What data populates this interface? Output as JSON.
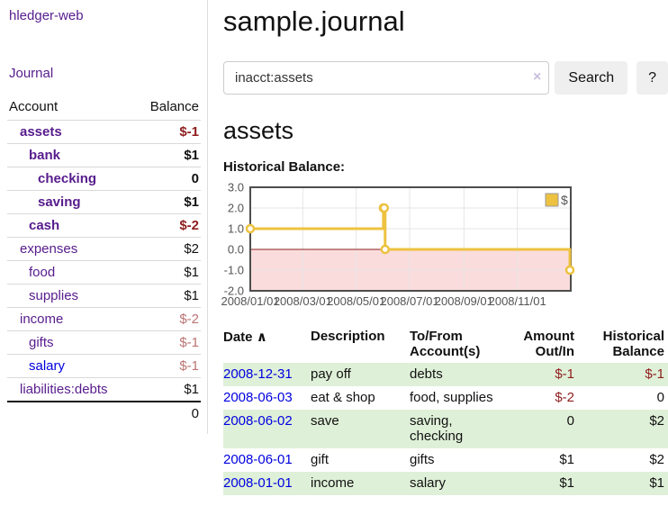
{
  "sidebar": {
    "brand": "hledger-web",
    "journal_link": "Journal",
    "accounts": {
      "headers": {
        "account": "Account",
        "balance": "Balance"
      },
      "rows": [
        {
          "name": "assets",
          "indent": 1,
          "bold": true,
          "balance": "$-1",
          "balance_style": "negative-strong",
          "link_style": "purple"
        },
        {
          "name": "bank",
          "indent": 2,
          "bold": true,
          "balance": "$1",
          "balance_style": "normal",
          "link_style": "purple"
        },
        {
          "name": "checking",
          "indent": 3,
          "bold": true,
          "balance": "0",
          "balance_style": "normal",
          "link_style": "purple"
        },
        {
          "name": "saving",
          "indent": 3,
          "bold": true,
          "balance": "$1",
          "balance_style": "normal",
          "link_style": "purple"
        },
        {
          "name": "cash",
          "indent": 2,
          "bold": true,
          "balance": "$-2",
          "balance_style": "negative-strong",
          "link_style": "purple"
        },
        {
          "name": "expenses",
          "indent": 1,
          "bold": false,
          "balance": "$2",
          "balance_style": "normal",
          "link_style": "purple"
        },
        {
          "name": "food",
          "indent": 2,
          "bold": false,
          "balance": "$1",
          "balance_style": "normal",
          "link_style": "purple"
        },
        {
          "name": "supplies",
          "indent": 2,
          "bold": false,
          "balance": "$1",
          "balance_style": "normal",
          "link_style": "purple"
        },
        {
          "name": "income",
          "indent": 1,
          "bold": false,
          "balance": "$-2",
          "balance_style": "negative-soft",
          "link_style": "purple"
        },
        {
          "name": "gifts",
          "indent": 2,
          "bold": false,
          "balance": "$-1",
          "balance_style": "negative-soft",
          "link_style": "purple"
        },
        {
          "name": "salary",
          "indent": 2,
          "bold": false,
          "balance": "$-1",
          "balance_style": "negative-soft",
          "link_style": "blue"
        },
        {
          "name": "liabilities:debts",
          "indent": 1,
          "bold": false,
          "balance": "$1",
          "balance_style": "normal",
          "link_style": "purple"
        }
      ],
      "total": "0"
    }
  },
  "main": {
    "title": "sample.journal",
    "search": {
      "value": "inacct:assets",
      "clear_label": "×",
      "search_button": "Search",
      "help_button": "?"
    },
    "account_heading": "assets",
    "chart_title": "Historical Balance:"
  },
  "chart_data": {
    "type": "line",
    "title": "Historical Balance:",
    "style": "steps-with-open-circle-markers",
    "legend_position": "top-right",
    "grid": true,
    "legend": [
      {
        "label": "$",
        "color": "#EDC240"
      }
    ],
    "x_axis": {
      "min_date": "2008-01-01",
      "max_date": "2008-12-31",
      "domain_days": [
        0,
        366
      ],
      "tick_day_offsets": [
        0,
        60,
        121,
        182,
        244,
        305
      ],
      "tick_labels": [
        "2008/01/01",
        "2008/03/01",
        "2008/05/01",
        "2008/07/01",
        "2008/09/01",
        "2008/11/01"
      ]
    },
    "y_axis": {
      "ylim": [
        -2,
        3
      ],
      "tick_values": [
        -2,
        -1,
        0,
        1,
        2,
        3
      ],
      "tick_labels": [
        "-2.0",
        "-1.0",
        "0.0",
        "1.0",
        "2.0",
        "3.0"
      ]
    },
    "series": [
      {
        "name": "$",
        "color": "#EDC240",
        "points": [
          {
            "date": "2008-01-01",
            "day": 0,
            "value": 1
          },
          {
            "date": "2008-06-01",
            "day": 152,
            "value": 2
          },
          {
            "date": "2008-06-02",
            "day": 153,
            "value": 2
          },
          {
            "date": "2008-06-03",
            "day": 154,
            "value": 0
          },
          {
            "date": "2008-12-31",
            "day": 365,
            "value": -1
          }
        ]
      }
    ],
    "colors": {
      "line": "#EDC240",
      "negative_region": "#fbdcdc",
      "zero_line": "#8b1c1c",
      "grid": "#e6e6e6",
      "border": "#4d4d4d",
      "tick_text": "#545454"
    }
  },
  "register": {
    "columns": [
      "Date",
      "Description",
      "To/From Account(s)",
      "Amount Out/In",
      "Historical Balance"
    ],
    "sort_indicator": "∧",
    "rows": [
      {
        "date": "2008-12-31",
        "description": "pay off",
        "accounts": "debts",
        "amount": "$-1",
        "amount_style": "negative",
        "balance": "$-1",
        "balance_style": "negative"
      },
      {
        "date": "2008-06-03",
        "description": "eat & shop",
        "accounts": "food, supplies",
        "amount": "$-2",
        "amount_style": "negative",
        "balance": "0",
        "balance_style": "normal"
      },
      {
        "date": "2008-06-02",
        "description": "save",
        "accounts": "saving, checking",
        "amount": "0",
        "amount_style": "normal",
        "balance": "$2",
        "balance_style": "normal"
      },
      {
        "date": "2008-06-01",
        "description": "gift",
        "accounts": "gifts",
        "amount": "$1",
        "amount_style": "normal",
        "balance": "$2",
        "balance_style": "normal"
      },
      {
        "date": "2008-01-01",
        "description": "income",
        "accounts": "salary",
        "amount": "$1",
        "amount_style": "normal",
        "balance": "$1",
        "balance_style": "normal"
      }
    ]
  }
}
